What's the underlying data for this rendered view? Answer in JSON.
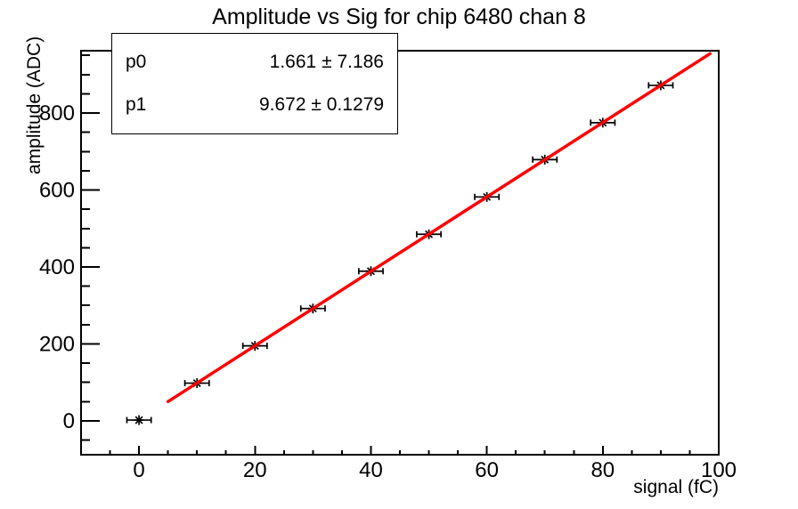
{
  "page": {
    "title": "Amplitude vs Sig for chip 6480 chan 8"
  },
  "stats_box": {
    "rows": [
      {
        "param": "p0",
        "value": "1.661",
        "plus_minus": "±",
        "error": "7.186"
      },
      {
        "param": "p1",
        "value": "9.672",
        "plus_minus": "±",
        "error": "0.1279"
      }
    ]
  },
  "colors": {
    "fit_line": "#ff0000",
    "axis": "#000000",
    "marker": "#000000",
    "background": "#ffffff"
  },
  "chart_data": {
    "type": "scatter",
    "title": "Amplitude vs Sig for chip 6480 chan 8",
    "xlabel": "signal (fC)",
    "ylabel": "amplitude (ADC)",
    "xlim": [
      -10,
      100
    ],
    "ylim": [
      -88,
      962
    ],
    "grid": false,
    "legend": false,
    "x_major_ticks": [
      0,
      20,
      40,
      60,
      80,
      100
    ],
    "x_minor_step": 5,
    "y_major_ticks": [
      0,
      200,
      400,
      600,
      800
    ],
    "y_minor_step": 50,
    "marker_style": "asterisk",
    "points": {
      "x": [
        0,
        10,
        20,
        30,
        40,
        50,
        60,
        70,
        80,
        90
      ],
      "y": [
        2,
        98,
        195,
        292,
        389,
        485,
        582,
        679,
        775,
        872
      ],
      "xerr": 1.4
    },
    "fit": {
      "label_p0": "p0",
      "p0": 1.661,
      "p0_err": 7.186,
      "label_p1": "p1",
      "p1": 9.672,
      "p1_err": 0.1279,
      "x_start": 5.0,
      "x_end": 98.5
    }
  }
}
